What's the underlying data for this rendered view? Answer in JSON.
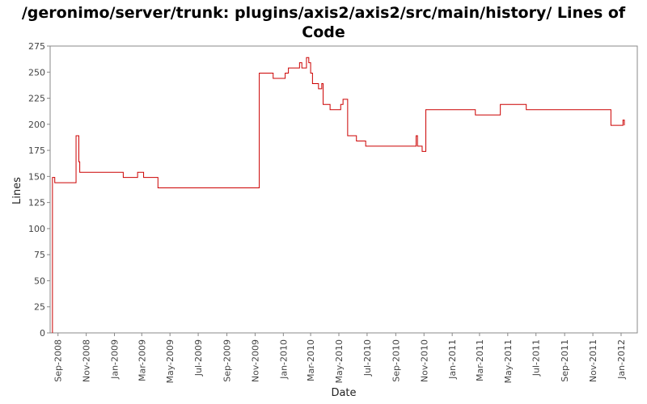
{
  "chart_data": {
    "type": "line",
    "title_line1": "/geronimo/server/trunk: plugins/axis2/axis2/src/main/history/ Lines of",
    "title_line2": "Code",
    "xlabel": "Date",
    "ylabel": "Lines",
    "ylim": [
      0,
      275
    ],
    "yticks": [
      0,
      25,
      50,
      75,
      100,
      125,
      150,
      175,
      200,
      225,
      250,
      275
    ],
    "xticks": [
      "Sep-2008",
      "Nov-2008",
      "Jan-2009",
      "Mar-2009",
      "May-2009",
      "Jul-2009",
      "Sep-2009",
      "Nov-2009",
      "Jan-2010",
      "Mar-2010",
      "May-2010",
      "Jul-2010",
      "Sep-2010",
      "Nov-2010",
      "Jan-2011",
      "Mar-2011",
      "May-2011",
      "Jul-2011",
      "Sep-2011",
      "Nov-2011",
      "Jan-2012"
    ],
    "xlim": [
      "2008-08-15",
      "2012-02-05"
    ],
    "grid": false,
    "legend": "none",
    "line_color": "#cc0000",
    "series": [
      {
        "points": [
          [
            "2008-08-20",
            0
          ],
          [
            "2008-08-20",
            149
          ],
          [
            "2008-08-25",
            149
          ],
          [
            "2008-08-25",
            144
          ],
          [
            "2008-10-10",
            144
          ],
          [
            "2008-10-10",
            189
          ],
          [
            "2008-10-16",
            189
          ],
          [
            "2008-10-16",
            164
          ],
          [
            "2008-10-18",
            164
          ],
          [
            "2008-10-18",
            154
          ],
          [
            "2009-01-20",
            154
          ],
          [
            "2009-01-20",
            149
          ],
          [
            "2009-02-20",
            149
          ],
          [
            "2009-02-20",
            154
          ],
          [
            "2009-03-05",
            154
          ],
          [
            "2009-03-05",
            149
          ],
          [
            "2009-04-05",
            149
          ],
          [
            "2009-04-05",
            139
          ],
          [
            "2009-11-10",
            139
          ],
          [
            "2009-11-10",
            249
          ],
          [
            "2009-12-10",
            249
          ],
          [
            "2009-12-10",
            244
          ],
          [
            "2010-01-05",
            244
          ],
          [
            "2010-01-05",
            249
          ],
          [
            "2010-01-12",
            249
          ],
          [
            "2010-01-12",
            254
          ],
          [
            "2010-02-05",
            254
          ],
          [
            "2010-02-05",
            259
          ],
          [
            "2010-02-10",
            259
          ],
          [
            "2010-02-10",
            254
          ],
          [
            "2010-02-20",
            254
          ],
          [
            "2010-02-20",
            264
          ],
          [
            "2010-02-25",
            264
          ],
          [
            "2010-02-25",
            259
          ],
          [
            "2010-03-01",
            259
          ],
          [
            "2010-03-01",
            249
          ],
          [
            "2010-03-05",
            249
          ],
          [
            "2010-03-05",
            239
          ],
          [
            "2010-03-18",
            239
          ],
          [
            "2010-03-18",
            234
          ],
          [
            "2010-03-25",
            234
          ],
          [
            "2010-03-25",
            239
          ],
          [
            "2010-03-28",
            239
          ],
          [
            "2010-03-28",
            219
          ],
          [
            "2010-04-12",
            219
          ],
          [
            "2010-04-12",
            214
          ],
          [
            "2010-05-05",
            214
          ],
          [
            "2010-05-05",
            219
          ],
          [
            "2010-05-10",
            219
          ],
          [
            "2010-05-10",
            224
          ],
          [
            "2010-05-20",
            224
          ],
          [
            "2010-05-20",
            189
          ],
          [
            "2010-06-08",
            189
          ],
          [
            "2010-06-08",
            184
          ],
          [
            "2010-06-28",
            184
          ],
          [
            "2010-06-28",
            179
          ],
          [
            "2010-10-15",
            179
          ],
          [
            "2010-10-15",
            189
          ],
          [
            "2010-10-18",
            189
          ],
          [
            "2010-10-18",
            179
          ],
          [
            "2010-10-28",
            179
          ],
          [
            "2010-10-28",
            174
          ],
          [
            "2010-11-05",
            174
          ],
          [
            "2010-11-05",
            214
          ],
          [
            "2011-02-20",
            214
          ],
          [
            "2011-02-20",
            209
          ],
          [
            "2011-04-15",
            209
          ],
          [
            "2011-04-15",
            219
          ],
          [
            "2011-06-10",
            219
          ],
          [
            "2011-06-10",
            214
          ],
          [
            "2011-12-10",
            214
          ],
          [
            "2011-12-10",
            199
          ],
          [
            "2012-01-05",
            199
          ],
          [
            "2012-01-05",
            204
          ],
          [
            "2012-01-08",
            204
          ],
          [
            "2012-01-08",
            199
          ]
        ]
      }
    ]
  }
}
